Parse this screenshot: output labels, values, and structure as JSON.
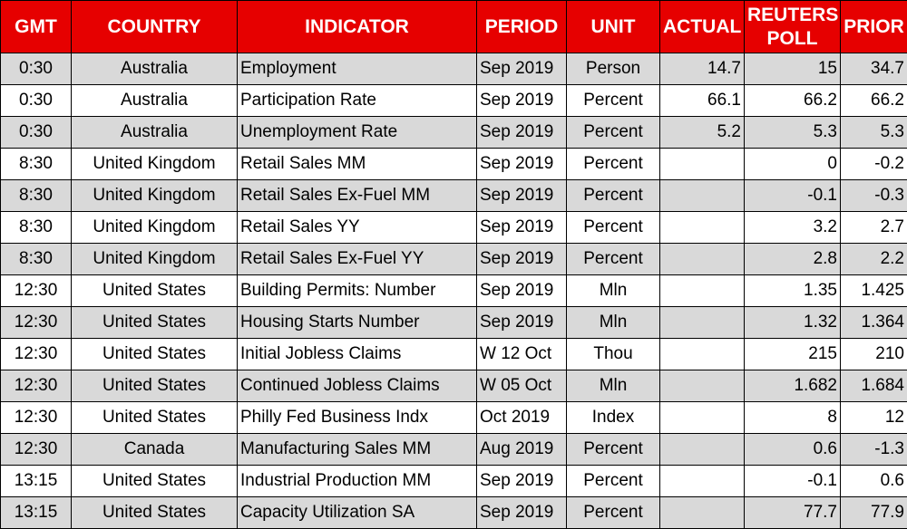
{
  "header": {
    "gmt": "GMT",
    "country": "COUNTRY",
    "indicator": "INDICATOR",
    "period": "PERIOD",
    "unit": "UNIT",
    "actual": "ACTUAL",
    "poll_line1": "REUTERS",
    "poll_line2": "POLL",
    "prior": "PRIOR"
  },
  "colors": {
    "header_bg": "#e60000",
    "header_text": "#ffffff",
    "row_shade": "#d9d9d9",
    "row_plain": "#ffffff"
  },
  "rows": [
    {
      "gmt": "0:30",
      "country": "Australia",
      "indicator": "Employment",
      "period": "Sep 2019",
      "unit": "Person",
      "actual": "14.7",
      "poll": "15",
      "prior": "34.7"
    },
    {
      "gmt": "0:30",
      "country": "Australia",
      "indicator": "Participation Rate",
      "period": "Sep 2019",
      "unit": "Percent",
      "actual": "66.1",
      "poll": "66.2",
      "prior": "66.2"
    },
    {
      "gmt": "0:30",
      "country": "Australia",
      "indicator": "Unemployment Rate",
      "period": "Sep 2019",
      "unit": "Percent",
      "actual": "5.2",
      "poll": "5.3",
      "prior": "5.3"
    },
    {
      "gmt": "8:30",
      "country": "United Kingdom",
      "indicator": "Retail Sales MM",
      "period": "Sep 2019",
      "unit": "Percent",
      "actual": "",
      "poll": "0",
      "prior": "-0.2"
    },
    {
      "gmt": "8:30",
      "country": "United Kingdom",
      "indicator": "Retail Sales Ex-Fuel MM",
      "period": "Sep 2019",
      "unit": "Percent",
      "actual": "",
      "poll": "-0.1",
      "prior": "-0.3"
    },
    {
      "gmt": "8:30",
      "country": "United Kingdom",
      "indicator": "Retail Sales YY",
      "period": "Sep 2019",
      "unit": "Percent",
      "actual": "",
      "poll": "3.2",
      "prior": "2.7"
    },
    {
      "gmt": "8:30",
      "country": "United Kingdom",
      "indicator": "Retail Sales Ex-Fuel YY",
      "period": "Sep 2019",
      "unit": "Percent",
      "actual": "",
      "poll": "2.8",
      "prior": "2.2"
    },
    {
      "gmt": "12:30",
      "country": "United States",
      "indicator": "Building Permits: Number",
      "period": "Sep 2019",
      "unit": "Mln",
      "actual": "",
      "poll": "1.35",
      "prior": "1.425"
    },
    {
      "gmt": "12:30",
      "country": "United States",
      "indicator": "Housing Starts Number",
      "period": "Sep 2019",
      "unit": "Mln",
      "actual": "",
      "poll": "1.32",
      "prior": "1.364"
    },
    {
      "gmt": "12:30",
      "country": "United States",
      "indicator": "Initial Jobless Claims",
      "period": "W 12 Oct",
      "unit": "Thou",
      "actual": "",
      "poll": "215",
      "prior": "210"
    },
    {
      "gmt": "12:30",
      "country": "United States",
      "indicator": "Continued Jobless Claims",
      "period": "W 05 Oct",
      "unit": "Mln",
      "actual": "",
      "poll": "1.682",
      "prior": "1.684"
    },
    {
      "gmt": "12:30",
      "country": "United States",
      "indicator": "Philly Fed Business Indx",
      "period": "Oct 2019",
      "unit": "Index",
      "actual": "",
      "poll": "8",
      "prior": "12"
    },
    {
      "gmt": "12:30",
      "country": "Canada",
      "indicator": "Manufacturing Sales MM",
      "period": "Aug 2019",
      "unit": "Percent",
      "actual": "",
      "poll": "0.6",
      "prior": "-1.3"
    },
    {
      "gmt": "13:15",
      "country": "United States",
      "indicator": "Industrial Production MM",
      "period": "Sep 2019",
      "unit": "Percent",
      "actual": "",
      "poll": "-0.1",
      "prior": "0.6"
    },
    {
      "gmt": "13:15",
      "country": "United States",
      "indicator": "Capacity Utilization SA",
      "period": "Sep 2019",
      "unit": "Percent",
      "actual": "",
      "poll": "77.7",
      "prior": "77.9"
    }
  ]
}
